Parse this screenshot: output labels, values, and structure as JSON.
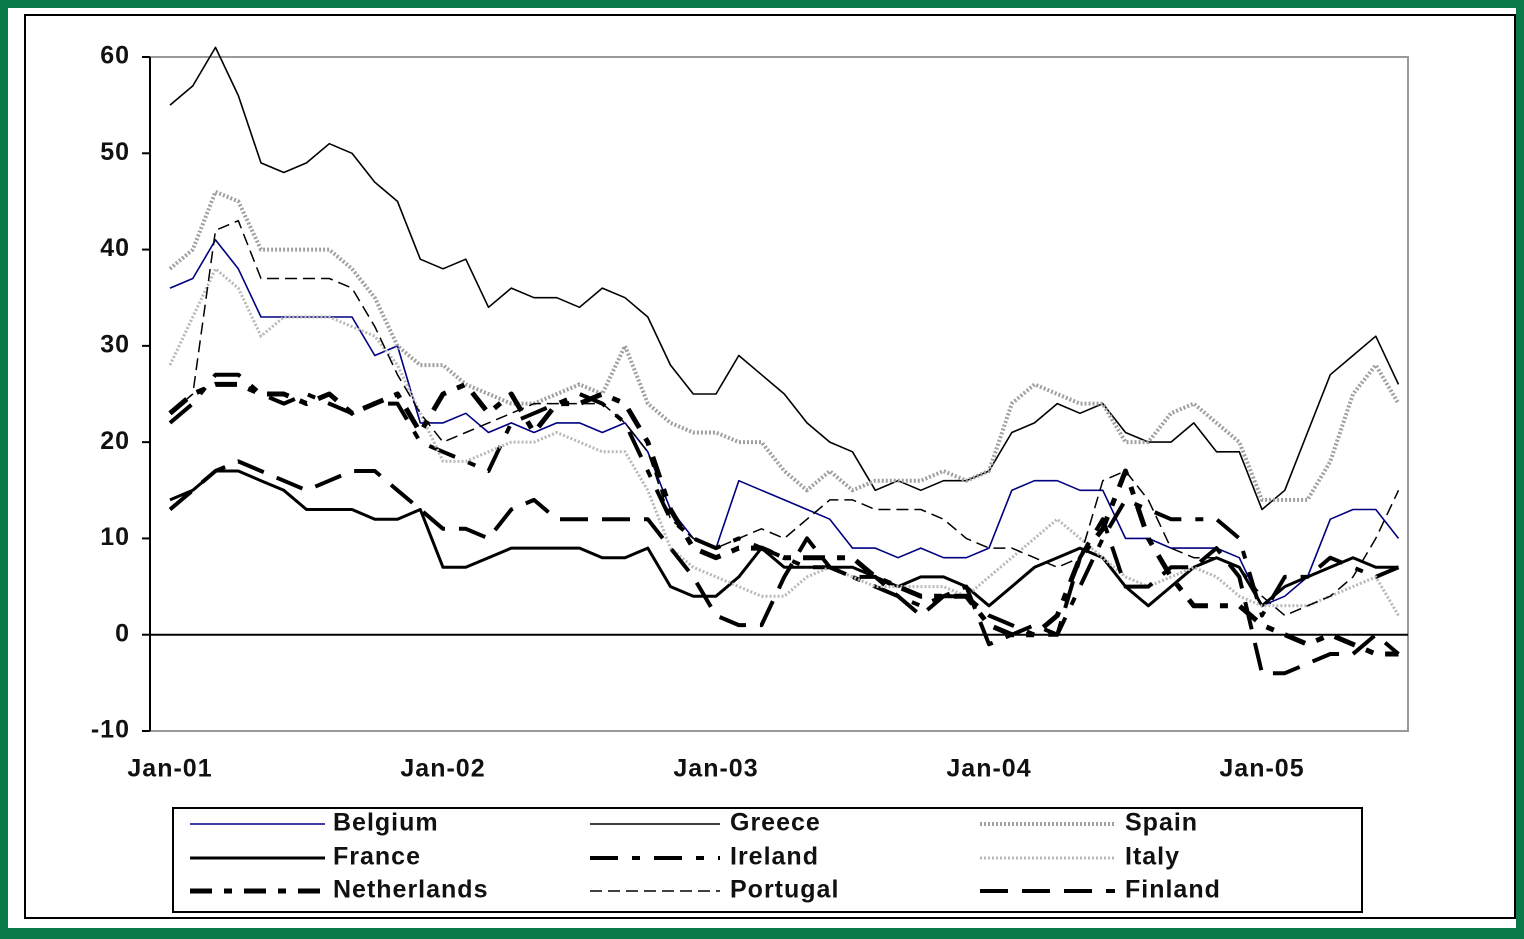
{
  "chart_data": {
    "type": "line",
    "categories": [
      "Jan-01",
      null,
      null,
      null,
      null,
      null,
      null,
      null,
      null,
      null,
      null,
      null,
      "Jan-02",
      null,
      null,
      null,
      null,
      null,
      null,
      null,
      null,
      null,
      null,
      null,
      "Jan-03",
      null,
      null,
      null,
      null,
      null,
      null,
      null,
      null,
      null,
      null,
      null,
      "Jan-04",
      null,
      null,
      null,
      null,
      null,
      null,
      null,
      null,
      null,
      null,
      null,
      "Jan-05",
      null,
      null,
      null,
      null,
      null,
      null
    ],
    "ylim": [
      -10,
      60
    ],
    "yticks": [
      -10,
      0,
      10,
      20,
      30,
      40,
      50,
      60
    ],
    "series": [
      {
        "name": "Belgium",
        "color": "#000080",
        "width": 1.6,
        "dash": "none",
        "values": [
          36,
          37,
          41,
          38,
          33,
          33,
          33,
          33,
          33,
          29,
          30,
          22,
          22,
          23,
          21,
          22,
          21,
          22,
          22,
          21,
          22,
          19,
          13,
          10,
          9,
          16,
          15,
          14,
          13,
          12,
          9,
          9,
          8,
          9,
          8,
          8,
          9,
          15,
          16,
          16,
          15,
          15,
          10,
          10,
          9,
          9,
          9,
          8,
          3,
          4,
          6,
          12,
          13,
          13,
          10
        ]
      },
      {
        "name": "Greece",
        "color": "#000000",
        "width": 1.6,
        "dash": "none",
        "values": [
          55,
          57,
          61,
          56,
          49,
          48,
          49,
          51,
          50,
          47,
          45,
          39,
          38,
          39,
          34,
          36,
          35,
          35,
          34,
          36,
          35,
          33,
          28,
          25,
          25,
          29,
          27,
          25,
          22,
          20,
          19,
          15,
          16,
          15,
          16,
          16,
          17,
          21,
          22,
          24,
          23,
          24,
          21,
          20,
          20,
          22,
          19,
          19,
          13,
          15,
          21,
          27,
          29,
          31,
          26
        ]
      },
      {
        "name": "Spain",
        "color": "#a0a0a0",
        "width": 4,
        "dash": "2,2",
        "values": [
          38,
          40,
          46,
          45,
          40,
          40,
          40,
          40,
          38,
          35,
          30,
          28,
          28,
          26,
          25,
          24,
          24,
          25,
          26,
          25,
          30,
          24,
          22,
          21,
          21,
          20,
          20,
          17,
          15,
          17,
          15,
          16,
          16,
          16,
          17,
          16,
          17,
          24,
          26,
          25,
          24,
          24,
          20,
          20,
          23,
          24,
          22,
          20,
          14,
          14,
          14,
          18,
          25,
          28,
          24
        ]
      },
      {
        "name": "France",
        "color": "#000000",
        "width": 3,
        "dash": "none",
        "values": [
          14,
          15,
          17,
          17,
          16,
          15,
          13,
          13,
          13,
          12,
          12,
          13,
          7,
          7,
          8,
          9,
          9,
          9,
          9,
          8,
          8,
          9,
          5,
          4,
          4,
          6,
          9,
          7,
          7,
          7,
          7,
          6,
          5,
          6,
          6,
          5,
          3,
          5,
          7,
          8,
          9,
          8,
          5,
          3,
          5,
          7,
          8,
          7,
          3,
          5,
          6,
          7,
          8,
          7,
          7
        ]
      },
      {
        "name": "Ireland",
        "color": "#000000",
        "width": 4,
        "dash": "28,14,8,14",
        "values": [
          22,
          24,
          27,
          27,
          25,
          24,
          25,
          24,
          23,
          24,
          24,
          20,
          19,
          18,
          17,
          22,
          23,
          24,
          25,
          24,
          22,
          17,
          12,
          10,
          9,
          10,
          9,
          8,
          7,
          7,
          6,
          5,
          4,
          3,
          4,
          4,
          2,
          1,
          0,
          0,
          5,
          10,
          14,
          13,
          12,
          12,
          12,
          10,
          2,
          6,
          6,
          8,
          7,
          6,
          7
        ]
      },
      {
        "name": "Italy",
        "color": "#b8b8b8",
        "width": 3,
        "dash": "2,2",
        "values": [
          28,
          33,
          38,
          36,
          31,
          33,
          33,
          33,
          32,
          31,
          28,
          23,
          18,
          18,
          19,
          20,
          20,
          21,
          20,
          19,
          19,
          15,
          9,
          7,
          6,
          5,
          4,
          4,
          6,
          7,
          6,
          5,
          5,
          5,
          5,
          4,
          6,
          8,
          10,
          12,
          10,
          8,
          6,
          5,
          6,
          7,
          6,
          4,
          3,
          3,
          3,
          4,
          5,
          6,
          2
        ]
      },
      {
        "name": "Netherlands",
        "color": "#000000",
        "width": 5,
        "dash": "22,12,8,12",
        "values": [
          23,
          25,
          26,
          26,
          25,
          25,
          24,
          25,
          23,
          24,
          25,
          21,
          25,
          26,
          23,
          25,
          21,
          24,
          24,
          25,
          24,
          20,
          13,
          9,
          8,
          9,
          9,
          8,
          8,
          8,
          8,
          6,
          5,
          4,
          4,
          4,
          1,
          0,
          0,
          2,
          8,
          11,
          17,
          10,
          6,
          3,
          3,
          3,
          1,
          0,
          -1,
          0,
          -1,
          -2,
          -2
        ]
      },
      {
        "name": "Portugal",
        "color": "#000000",
        "width": 1.5,
        "dash": "12,6",
        "values": [
          23,
          25,
          42,
          43,
          37,
          37,
          37,
          37,
          36,
          32,
          27,
          23,
          20,
          21,
          22,
          23,
          24,
          24,
          24,
          24,
          22,
          19,
          12,
          10,
          9,
          10,
          11,
          10,
          12,
          14,
          14,
          13,
          13,
          13,
          12,
          10,
          9,
          9,
          8,
          7,
          8,
          16,
          17,
          14,
          9,
          8,
          8,
          7,
          4,
          2,
          3,
          4,
          6,
          10,
          15
        ]
      },
      {
        "name": "Finland",
        "color": "#000000",
        "width": 4,
        "dash": "28,14",
        "values": [
          13,
          15,
          17,
          18,
          17,
          16,
          15,
          16,
          17,
          17,
          15,
          13,
          11,
          11,
          10,
          13,
          14,
          12,
          12,
          12,
          12,
          12,
          9,
          6,
          2,
          1,
          1,
          6,
          10,
          7,
          6,
          6,
          4,
          2,
          4,
          5,
          -1,
          0,
          1,
          0,
          8,
          12,
          5,
          5,
          7,
          7,
          9,
          6,
          -4,
          -4,
          -3,
          -2,
          -2,
          0,
          -2
        ]
      }
    ]
  }
}
